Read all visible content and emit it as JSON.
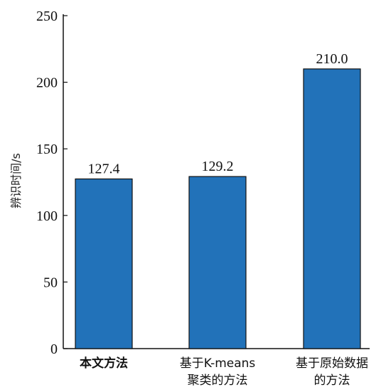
{
  "chart_data": {
    "type": "bar",
    "title": "",
    "xlabel": "",
    "ylabel": "辨识时间/s",
    "ylim": [
      0,
      250
    ],
    "yticks": [
      0,
      50,
      100,
      150,
      200,
      250
    ],
    "grid": false,
    "categories": [
      {
        "lines": [
          "本文方法"
        ],
        "bold": true
      },
      {
        "lines": [
          "基于K-means",
          "聚类的方法"
        ],
        "bold": false
      },
      {
        "lines": [
          "基于原始数据",
          "的方法"
        ],
        "bold": false
      }
    ],
    "values": [
      127.4,
      129.2,
      210.0
    ],
    "value_labels": [
      "127.4",
      "129.2",
      "210.0"
    ],
    "colors": {
      "bar": "#2272b9",
      "bar_edge": "#111111",
      "axis": "#111111"
    }
  }
}
